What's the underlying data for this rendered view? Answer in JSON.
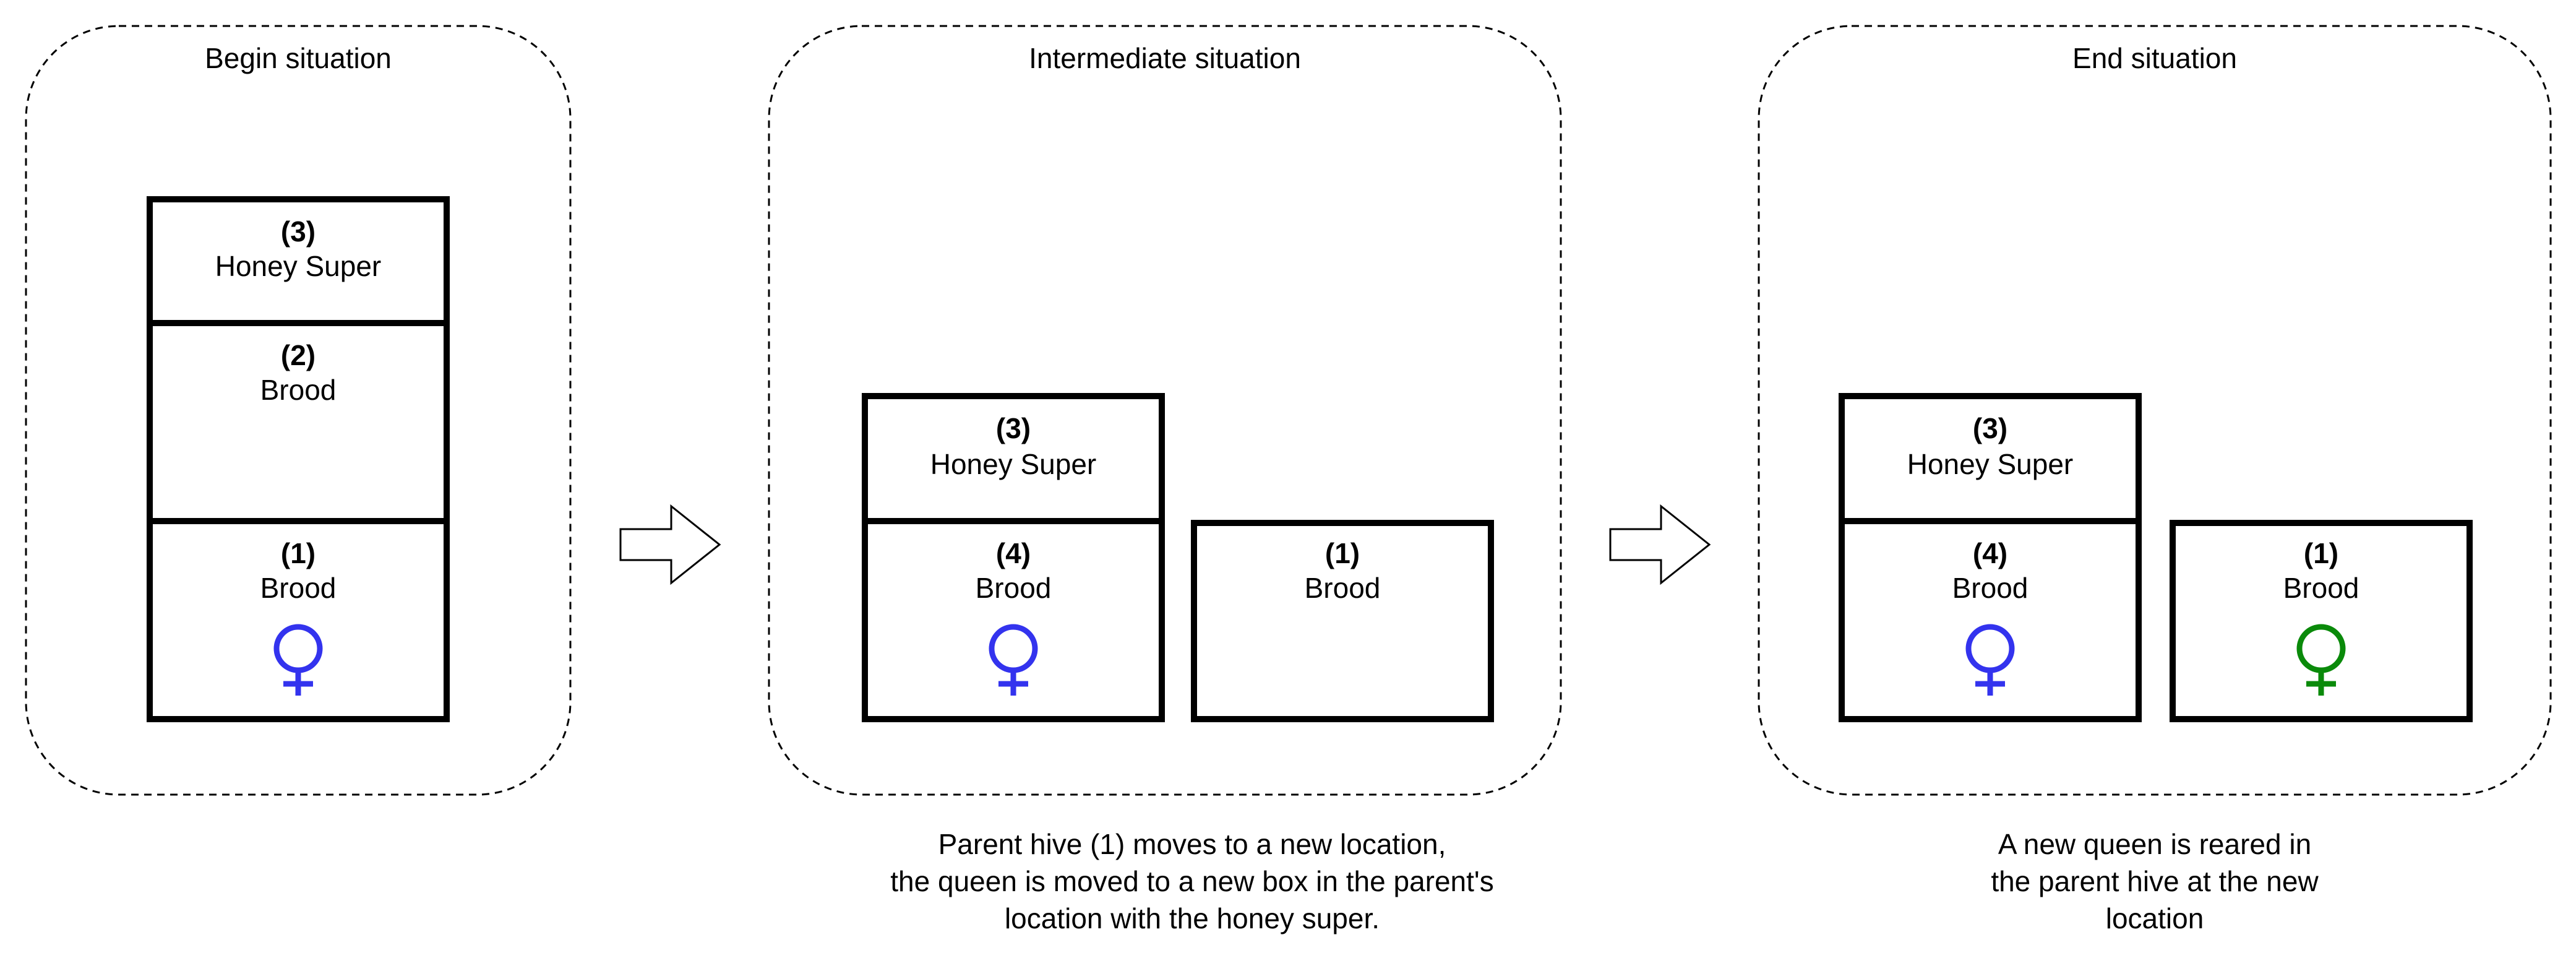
{
  "colors": {
    "queen_old": "#3333ee",
    "queen_new": "#0a8a0a",
    "stroke": "#000000",
    "background": "#ffffff"
  },
  "panels": [
    {
      "title": "Begin situation",
      "boxes": [
        {
          "number": "(3)",
          "label": "Honey Super"
        },
        {
          "number": "(2)",
          "label": "Brood"
        },
        {
          "number": "(1)",
          "label": "Brood",
          "queen": "queen_old"
        }
      ]
    },
    {
      "title": "Intermediate situation",
      "boxes": [
        {
          "number": "(3)",
          "label": "Honey Super"
        },
        {
          "number": "(4)",
          "label": "Brood",
          "queen": "queen_old"
        },
        {
          "number": "(1)",
          "label": "Brood"
        }
      ],
      "caption": [
        "Parent hive (1) moves to a new location,",
        "the queen is moved to a new box in the parent's",
        "location with the honey super."
      ]
    },
    {
      "title": "End situation",
      "boxes": [
        {
          "number": "(3)",
          "label": "Honey Super"
        },
        {
          "number": "(4)",
          "label": "Brood",
          "queen": "queen_old"
        },
        {
          "number": "(1)",
          "label": "Brood",
          "queen": "queen_new"
        }
      ],
      "caption": [
        "A new queen is reared in",
        "the parent hive at the new",
        "location"
      ]
    }
  ],
  "icons": {
    "arrow": "right-arrow-icon",
    "queen": "female-symbol-icon"
  }
}
